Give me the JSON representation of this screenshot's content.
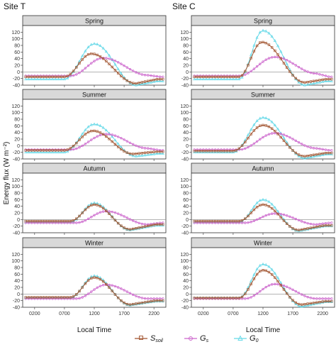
{
  "figure": {
    "site_titles": [
      "Site T",
      "Site C"
    ],
    "y_axis_label": "Energy flux (W m⁻²)",
    "x_axis_label": "Local Time",
    "legend": [
      {
        "key": "ssoil",
        "base": "S",
        "sub": "soil",
        "color": "#a0522d",
        "marker": "square"
      },
      {
        "key": "gs",
        "base": "G",
        "sub": "s",
        "color": "#cc66cc",
        "marker": "circle"
      },
      {
        "key": "g0",
        "base": "G",
        "sub": "0",
        "color": "#66d9e8",
        "marker": "triangle"
      }
    ],
    "x_ticks": [
      "0200",
      "0700",
      "1200",
      "1700",
      "2200"
    ],
    "x_tick_values": [
      2,
      7,
      12,
      17,
      22
    ],
    "y_ticks": [
      "-40",
      "-20",
      "0",
      "20",
      "40",
      "60",
      "80",
      "100",
      "120"
    ],
    "y_tick_values": [
      -40,
      -20,
      0,
      20,
      40,
      60,
      80,
      100,
      120
    ]
  },
  "chart_data": [
    {
      "type": "line",
      "site": "Site T",
      "panel": "Spring",
      "xlim": [
        0,
        24
      ],
      "ylim": [
        -40,
        140
      ],
      "series": [
        {
          "name": "Ssoil",
          "shape": "peak",
          "params": {
            "base": -15,
            "t0": 7,
            "tp": 11.5,
            "peak": 55,
            "t1": 19,
            "trough": -35,
            "end": -22
          }
        },
        {
          "name": "Gs",
          "shape": "wave",
          "params": {
            "base": -12,
            "t0": 8,
            "tp": 13.5,
            "peak": 42,
            "t1": 21,
            "trough": -10,
            "end": -15
          }
        },
        {
          "name": "G0",
          "shape": "peak",
          "params": {
            "base": -22,
            "t0": 7,
            "tp": 12,
            "peak": 85,
            "t1": 19,
            "trough": -40,
            "end": -28
          }
        }
      ]
    },
    {
      "type": "line",
      "site": "Site C",
      "panel": "Spring",
      "xlim": [
        0,
        24
      ],
      "ylim": [
        -40,
        140
      ],
      "series": [
        {
          "name": "Ssoil",
          "shape": "peak",
          "params": {
            "base": -15,
            "t0": 8,
            "tp": 11.8,
            "peak": 90,
            "t1": 19,
            "trough": -32,
            "end": -22
          }
        },
        {
          "name": "Gs",
          "shape": "wave",
          "params": {
            "base": -12,
            "t0": 8,
            "tp": 14,
            "peak": 45,
            "t1": 21,
            "trough": -5,
            "end": -15
          }
        },
        {
          "name": "G0",
          "shape": "peak",
          "params": {
            "base": -22,
            "t0": 8,
            "tp": 12,
            "peak": 125,
            "t1": 19,
            "trough": -40,
            "end": -28
          }
        }
      ]
    },
    {
      "type": "line",
      "site": "Site T",
      "panel": "Summer",
      "xlim": [
        0,
        24
      ],
      "ylim": [
        -40,
        140
      ],
      "series": [
        {
          "name": "Ssoil",
          "shape": "peak",
          "params": {
            "base": -14,
            "t0": 7,
            "tp": 11.8,
            "peak": 45,
            "t1": 18.5,
            "trough": -25,
            "end": -18
          }
        },
        {
          "name": "Gs",
          "shape": "wave",
          "params": {
            "base": -12,
            "t0": 8,
            "tp": 14,
            "peak": 35,
            "t1": 21,
            "trough": -8,
            "end": -14
          }
        },
        {
          "name": "G0",
          "shape": "peak",
          "params": {
            "base": -20,
            "t0": 7,
            "tp": 12,
            "peak": 65,
            "t1": 19,
            "trough": -32,
            "end": -24
          }
        }
      ]
    },
    {
      "type": "line",
      "site": "Site C",
      "panel": "Summer",
      "xlim": [
        0,
        24
      ],
      "ylim": [
        -40,
        140
      ],
      "series": [
        {
          "name": "Ssoil",
          "shape": "peak",
          "params": {
            "base": -16,
            "t0": 7,
            "tp": 12,
            "peak": 62,
            "t1": 19,
            "trough": -32,
            "end": -22
          }
        },
        {
          "name": "Gs",
          "shape": "wave",
          "params": {
            "base": -12,
            "t0": 8,
            "tp": 14,
            "peak": 38,
            "t1": 21,
            "trough": -8,
            "end": -14
          }
        },
        {
          "name": "G0",
          "shape": "peak",
          "params": {
            "base": -20,
            "t0": 7,
            "tp": 12,
            "peak": 85,
            "t1": 19,
            "trough": -38,
            "end": -26
          }
        }
      ]
    },
    {
      "type": "line",
      "site": "Site T",
      "panel": "Autumn",
      "xlim": [
        0,
        24
      ],
      "ylim": [
        -40,
        140
      ],
      "series": [
        {
          "name": "Ssoil",
          "shape": "peak",
          "params": {
            "base": -5,
            "t0": 8,
            "tp": 12,
            "peak": 45,
            "t1": 18,
            "trough": -30,
            "end": -15
          }
        },
        {
          "name": "Gs",
          "shape": "wave",
          "params": {
            "base": -10,
            "t0": 9,
            "tp": 14,
            "peak": 25,
            "t1": 21,
            "trough": -15,
            "end": -10
          }
        },
        {
          "name": "G0",
          "shape": "peak",
          "params": {
            "base": -8,
            "t0": 8,
            "tp": 12,
            "peak": 50,
            "t1": 18,
            "trough": -32,
            "end": -18
          }
        }
      ]
    },
    {
      "type": "line",
      "site": "Site C",
      "panel": "Autumn",
      "xlim": [
        0,
        24
      ],
      "ylim": [
        -40,
        140
      ],
      "series": [
        {
          "name": "Ssoil",
          "shape": "peak",
          "params": {
            "base": -5,
            "t0": 8,
            "tp": 12,
            "peak": 45,
            "t1": 18,
            "trough": -32,
            "end": -18
          }
        },
        {
          "name": "Gs",
          "shape": "wave",
          "params": {
            "base": -10,
            "t0": 9,
            "tp": 14,
            "peak": 18,
            "t1": 21,
            "trough": -15,
            "end": -10
          }
        },
        {
          "name": "G0",
          "shape": "peak",
          "params": {
            "base": -8,
            "t0": 8,
            "tp": 12,
            "peak": 60,
            "t1": 18,
            "trough": -35,
            "end": -20
          }
        }
      ]
    },
    {
      "type": "line",
      "site": "Site T",
      "panel": "Winter",
      "xlim": [
        0,
        24
      ],
      "ylim": [
        -40,
        140
      ],
      "series": [
        {
          "name": "Ssoil",
          "shape": "peak",
          "params": {
            "base": -10,
            "t0": 8,
            "tp": 12,
            "peak": 50,
            "t1": 18,
            "trough": -32,
            "end": -20
          }
        },
        {
          "name": "Gs",
          "shape": "wave",
          "params": {
            "base": -14,
            "t0": 9,
            "tp": 14,
            "peak": 28,
            "t1": 21,
            "trough": -14,
            "end": -14
          }
        },
        {
          "name": "G0",
          "shape": "peak",
          "params": {
            "base": -12,
            "t0": 8,
            "tp": 12,
            "peak": 55,
            "t1": 18,
            "trough": -34,
            "end": -22
          }
        }
      ]
    },
    {
      "type": "line",
      "site": "Site C",
      "panel": "Winter",
      "xlim": [
        0,
        24
      ],
      "ylim": [
        -40,
        140
      ],
      "series": [
        {
          "name": "Ssoil",
          "shape": "peak",
          "params": {
            "base": -12,
            "t0": 8,
            "tp": 12,
            "peak": 72,
            "t1": 18.5,
            "trough": -32,
            "end": -22
          }
        },
        {
          "name": "Gs",
          "shape": "wave",
          "params": {
            "base": -14,
            "t0": 9,
            "tp": 14,
            "peak": 30,
            "t1": 21,
            "trough": -14,
            "end": -14
          }
        },
        {
          "name": "G0",
          "shape": "peak",
          "params": {
            "base": -12,
            "t0": 8,
            "tp": 12,
            "peak": 90,
            "t1": 18.5,
            "trough": -38,
            "end": -24
          }
        }
      ]
    }
  ]
}
